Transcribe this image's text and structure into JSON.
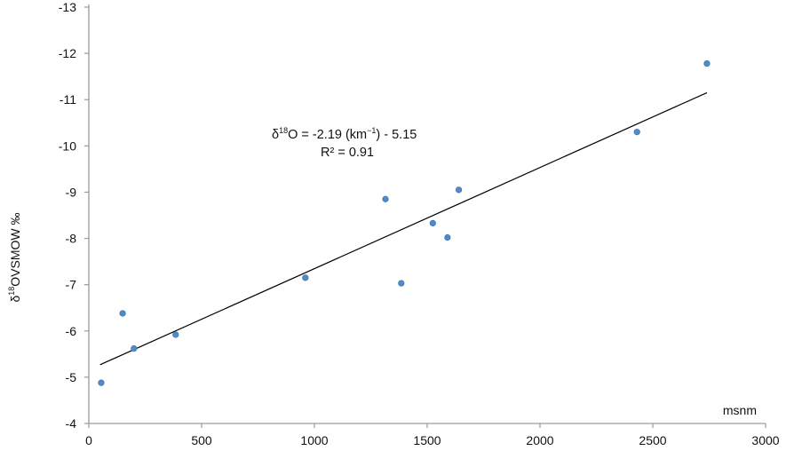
{
  "chart_data": {
    "type": "scatter",
    "title": "",
    "xlabel": "msnm",
    "ylabel": "δ18OVSMOW ‰",
    "ylabel_parts": {
      "pre": "δ",
      "sup": "18",
      "post": "OVSMOW ‰"
    },
    "xlim": [
      0,
      3000
    ],
    "ylim": [
      -4,
      -13
    ],
    "x_ticks": [
      0,
      500,
      1000,
      1500,
      2000,
      2500,
      3000
    ],
    "y_ticks": [
      -4,
      -5,
      -6,
      -7,
      -8,
      -9,
      -10,
      -11,
      -12,
      -13
    ],
    "grid": false,
    "legend": "none",
    "point_color": "#4f8bc9",
    "line_color": "#000000",
    "series": [
      {
        "points": [
          {
            "x": 55,
            "y": -4.88
          },
          {
            "x": 150,
            "y": -6.38
          },
          {
            "x": 200,
            "y": -5.62
          },
          {
            "x": 385,
            "y": -5.92
          },
          {
            "x": 960,
            "y": -7.15
          },
          {
            "x": 1315,
            "y": -8.85
          },
          {
            "x": 1385,
            "y": -7.03
          },
          {
            "x": 1525,
            "y": -8.33
          },
          {
            "x": 1590,
            "y": -8.02
          },
          {
            "x": 1640,
            "y": -9.05
          },
          {
            "x": 2430,
            "y": -10.3
          },
          {
            "x": 2740,
            "y": -11.78
          }
        ]
      }
    ],
    "trendline": {
      "x": [
        50,
        2740
      ],
      "y": [
        -5.27,
        -11.15
      ]
    },
    "annotation": {
      "line1_pre": "δ",
      "line1_sup": "18",
      "line1_mid": "O = -2.19 (km",
      "line1_sup2": "−1",
      "line1_post": ") - 5.15",
      "line2": "R² = 0.91"
    }
  }
}
